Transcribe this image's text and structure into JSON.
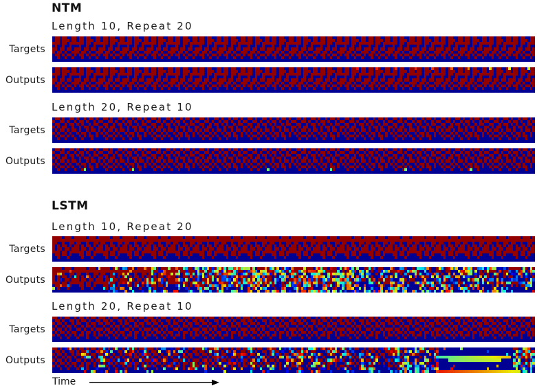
{
  "figure": {
    "time_axis_label": "Time",
    "colormap": "jet",
    "value_low_color": "#000092",
    "value_high_color": "#890000"
  },
  "chart_data": {
    "type": "heatmap",
    "bits_per_vector": 8,
    "columns_per_strip": 200,
    "sections": [
      {
        "title": "NTM",
        "blocks": [
          {
            "subtitle": "Length 10, Repeat 20",
            "length": 10,
            "repeat": 20,
            "strips": [
              {
                "label": "Targets",
                "period": 10,
                "seed": 11,
                "pattern": [
                  "0110110011",
                  "0110111011",
                  "1110110111",
                  "0100100100",
                  "1101101101",
                  "1011010011",
                  "0110101101",
                  "0010010010",
                  "0000000000"
                ],
                "segments": [],
                "streaks": [],
                "errors": []
              },
              {
                "label": "Outputs",
                "period": 10,
                "seed": 12,
                "pattern": [
                  "0110110011",
                  "0110111011",
                  "1110110111",
                  "0100100100",
                  "1101101101",
                  "1011010011",
                  "0110101101",
                  "0010010010",
                  "0000000000"
                ],
                "segments": [],
                "streaks": [],
                "errors": [
                  {
                    "col": 126,
                    "row": 0,
                    "v": 0.88
                  },
                  {
                    "col": 134,
                    "row": 0,
                    "v": 0.85
                  },
                  {
                    "col": 142,
                    "row": 0,
                    "v": 0.85
                  },
                  {
                    "col": 150,
                    "row": 0,
                    "v": 0.84
                  },
                  {
                    "col": 157,
                    "row": 0,
                    "v": 0.82
                  },
                  {
                    "col": 165,
                    "row": 0,
                    "v": 0.78
                  },
                  {
                    "col": 172,
                    "row": 0,
                    "v": 0.74
                  },
                  {
                    "col": 181,
                    "row": 0,
                    "v": 0.66
                  },
                  {
                    "col": 189,
                    "row": 0,
                    "v": 0.62
                  },
                  {
                    "col": 197,
                    "row": 0,
                    "v": 0.6
                  }
                ]
              }
            ]
          },
          {
            "subtitle": "Length 20, Repeat 10",
            "length": 20,
            "repeat": 10,
            "strips": [
              {
                "label": "Targets",
                "period": 20,
                "seed": 13,
                "pattern": [
                  "01101001101001011010",
                  "10011010010110100101",
                  "01100101101010010110",
                  "10101100100101101001",
                  "01011010110100101101",
                  "10100101001011010010",
                  "01011010100101011010",
                  "00100100010010001000",
                  "00000000000000000000"
                ],
                "segments": [],
                "streaks": [],
                "errors": []
              },
              {
                "label": "Outputs",
                "period": 20,
                "seed": 14,
                "pattern": [
                  "01101001101001011010",
                  "10011010010110100101",
                  "01100101101010010110",
                  "10101100100101101001",
                  "01011010110100101101",
                  "10100101001011010010",
                  "01011010100101011010",
                  "00100100010010001000",
                  "00000000000000000000"
                ],
                "segments": [],
                "streaks": [],
                "errors": [
                  {
                    "col": 13,
                    "row": 7,
                    "v": 0.5
                  },
                  {
                    "col": 33,
                    "row": 7,
                    "v": 0.5
                  },
                  {
                    "col": 89,
                    "row": 7,
                    "v": 0.5
                  },
                  {
                    "col": 115,
                    "row": 7,
                    "v": 0.46
                  },
                  {
                    "col": 146,
                    "row": 7,
                    "v": 0.5
                  },
                  {
                    "col": 173,
                    "row": 7,
                    "v": 0.48
                  }
                ]
              }
            ]
          }
        ]
      },
      {
        "title": "LSTM",
        "blocks": [
          {
            "subtitle": "Length 10, Repeat 20",
            "length": 10,
            "repeat": 20,
            "strips": [
              {
                "label": "Targets",
                "period": 10,
                "seed": 21,
                "pattern": [
                  "1111011101",
                  "1111111111",
                  "1100100110",
                  "1010110101",
                  "1011011011",
                  "1110110111",
                  "0110110100",
                  "0010001000",
                  "0000000000"
                ],
                "segments": [],
                "streaks": [],
                "errors": []
              },
              {
                "label": "Outputs",
                "period": 10,
                "seed": 22,
                "pattern": [
                  "1111011101",
                  "1111111111",
                  "1100100110",
                  "1010110101",
                  "1011011011",
                  "1110110111",
                  "0110110100",
                  "0010001000",
                  "0000000000"
                ],
                "segments": [
                  {
                    "from": 0.0,
                    "to": 0.1,
                    "mode": "base",
                    "noise": 0.05,
                    "fade": 0
                  },
                  {
                    "from": 0.1,
                    "to": 0.3,
                    "mode": "base",
                    "noise": 0.25,
                    "fade": 0
                  },
                  {
                    "from": 0.3,
                    "to": 0.62,
                    "mode": "base",
                    "noise": 0.55,
                    "fade": 0.1
                  },
                  {
                    "from": 0.62,
                    "to": 0.85,
                    "mode": "base",
                    "noise": 0.42,
                    "fade": 0.5
                  },
                  {
                    "from": 0.85,
                    "to": 1.0,
                    "mode": "base",
                    "noise": 0.45,
                    "fade": 0.35
                  }
                ],
                "streaks": [],
                "errors": [
                  {
                    "col": 9,
                    "row": 3,
                    "v": 0.42
                  }
                ]
              }
            ]
          },
          {
            "subtitle": "Length 20, Repeat 10",
            "length": 20,
            "repeat": 10,
            "strips": [
              {
                "label": "Targets",
                "period": 20,
                "seed": 23,
                "pattern": [
                  "11010110010110101101",
                  "01101001101011010011",
                  "10110100101100101101",
                  "01001011010010110100",
                  "10110101001101001011",
                  "01011010110010110101",
                  "10100101010110100101",
                  "00010010001000100010",
                  "00000000000000000000"
                ],
                "segments": [],
                "streaks": [],
                "errors": []
              },
              {
                "label": "Outputs",
                "period": 20,
                "seed": 24,
                "pattern": [
                  "11010110010110101101",
                  "01101001101011010011",
                  "10110100101100101101",
                  "01001011010010110100",
                  "10110101001101001011",
                  "01011010110010110101",
                  "10100101010110100101",
                  "00010010001000100010",
                  "00000000000000000000"
                ],
                "segments": [
                  {
                    "from": 0.0,
                    "to": 0.06,
                    "mode": "base",
                    "noise": 0.03,
                    "fade": 0
                  },
                  {
                    "from": 0.06,
                    "to": 0.45,
                    "mode": "base",
                    "noise": 0.18,
                    "fade": 0
                  },
                  {
                    "from": 0.45,
                    "to": 0.72,
                    "mode": "base",
                    "noise": 0.26,
                    "fade": 0.12
                  },
                  {
                    "from": 0.72,
                    "to": 0.8,
                    "mode": "base",
                    "noise": 0.5,
                    "fade": 0.4
                  },
                  {
                    "from": 0.8,
                    "to": 0.955,
                    "mode": "collapsed",
                    "noise": 0.05,
                    "fade": 0
                  },
                  {
                    "from": 0.955,
                    "to": 1.0,
                    "mode": "base",
                    "noise": 0.5,
                    "fade": 0.2
                  }
                ],
                "streaks": [
                  {
                    "rows": [
                      3
                    ],
                    "from": 0.8,
                    "to": 0.95,
                    "v_from": 0.45,
                    "v_to": 0.68
                  },
                  {
                    "rows": [
                      4
                    ],
                    "from": 0.82,
                    "to": 0.93,
                    "v_from": 0.5,
                    "v_to": 0.6
                  },
                  {
                    "rows": [
                      8
                    ],
                    "from": 0.8,
                    "to": 0.97,
                    "v_from": 0.85,
                    "v_to": 0.6
                  }
                ],
                "errors": []
              }
            ]
          }
        ]
      }
    ]
  }
}
